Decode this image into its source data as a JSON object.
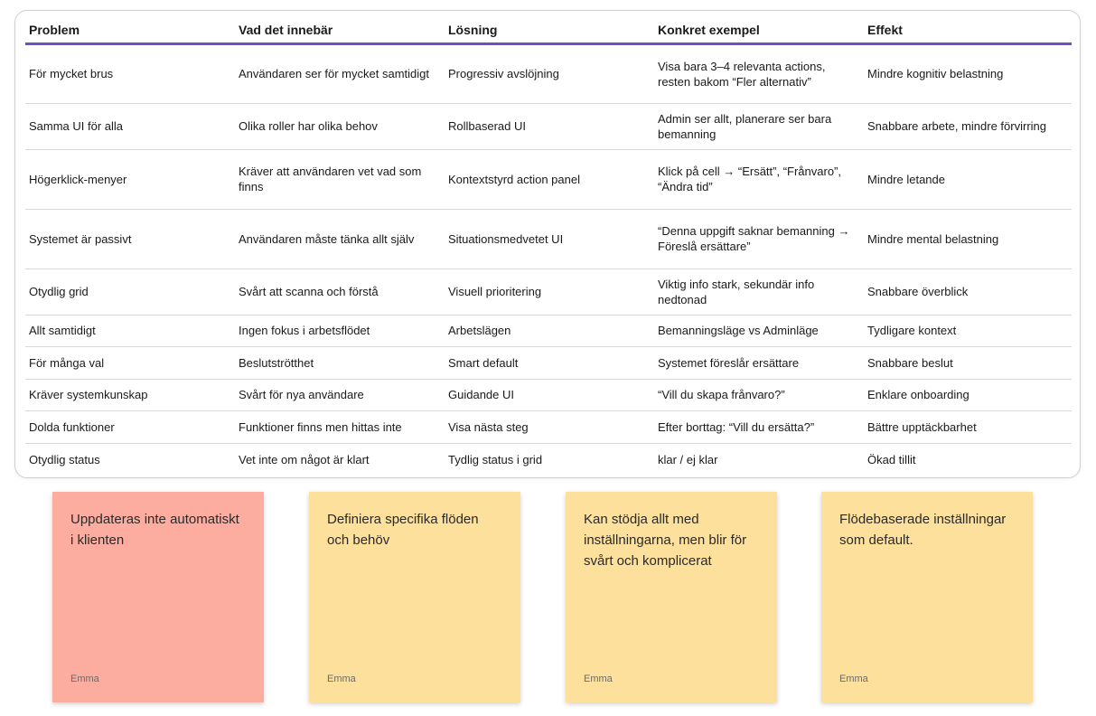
{
  "table": {
    "headers": [
      "Problem",
      "Vad det innebär",
      "Lösning",
      "Konkret exempel",
      "Effekt"
    ],
    "rows": [
      [
        "För mycket brus",
        "Användaren ser för mycket samtidigt",
        "Progressiv avslöjning",
        "Visa bara 3–4 relevanta actions, resten bakom “Fler alternativ”",
        "Mindre kognitiv belastning"
      ],
      [
        "Samma UI för alla",
        "Olika roller har olika behov",
        "Rollbaserad UI",
        "Admin ser allt, planerare ser bara bemanning",
        "Snabbare arbete, mindre förvirring"
      ],
      [
        "Högerklick-menyer",
        "Kräver att användaren vet vad som finns",
        "Kontextstyrd action panel",
        "Klick på cell → “Ersätt”, “Frånvaro”, “Ändra tid”",
        "Mindre letande"
      ],
      [
        "Systemet är passivt",
        "Användaren måste tänka allt själv",
        "Situationsmedvetet UI",
        "“Denna uppgift saknar bemanning → Föreslå ersättare”",
        "Mindre mental belastning"
      ],
      [
        "Otydlig grid",
        "Svårt att scanna och förstå",
        "Visuell prioritering",
        "Viktig info stark, sekundär info nedtonad",
        "Snabbare överblick"
      ],
      [
        "Allt samtidigt",
        "Ingen fokus i arbetsflödet",
        "Arbetslägen",
        "Bemanningsläge vs Adminläge",
        "Tydligare kontext"
      ],
      [
        "För många val",
        "Beslutströtthet",
        "Smart default",
        "Systemet föreslår ersättare",
        "Snabbare beslut"
      ],
      [
        "Kräver systemkunskap",
        "Svårt för nya användare",
        "Guidande UI",
        "“Vill du skapa frånvaro?”",
        "Enklare onboarding"
      ],
      [
        "Dolda funktioner",
        "Funktioner finns men hittas inte",
        "Visa nästa steg",
        "Efter borttag: “Vill du ersätta?”",
        "Bättre upptäckbarhet"
      ],
      [
        "Otydlig status",
        "Vet inte om något är klart",
        "Tydlig status i grid",
        "klar / ej klar",
        "Ökad tillit"
      ]
    ]
  },
  "stickies": [
    {
      "text": "Uppdateras inte automatiskt i klienten",
      "author": "Emma",
      "color": "#fdada0"
    },
    {
      "text": "Definiera specifika flöden och behöv",
      "author": "Emma",
      "color": "#fde09b"
    },
    {
      "text": "Kan stödja allt med inställningarna, men blir för svårt och komplicerat",
      "author": "Emma",
      "color": "#fde09b"
    },
    {
      "text": "Flödebaserade inställningar som default.",
      "author": "Emma",
      "color": "#fde09b"
    }
  ],
  "colors": {
    "header_rule": "#6b4fc8",
    "row_divider": "#d9d9d9"
  }
}
